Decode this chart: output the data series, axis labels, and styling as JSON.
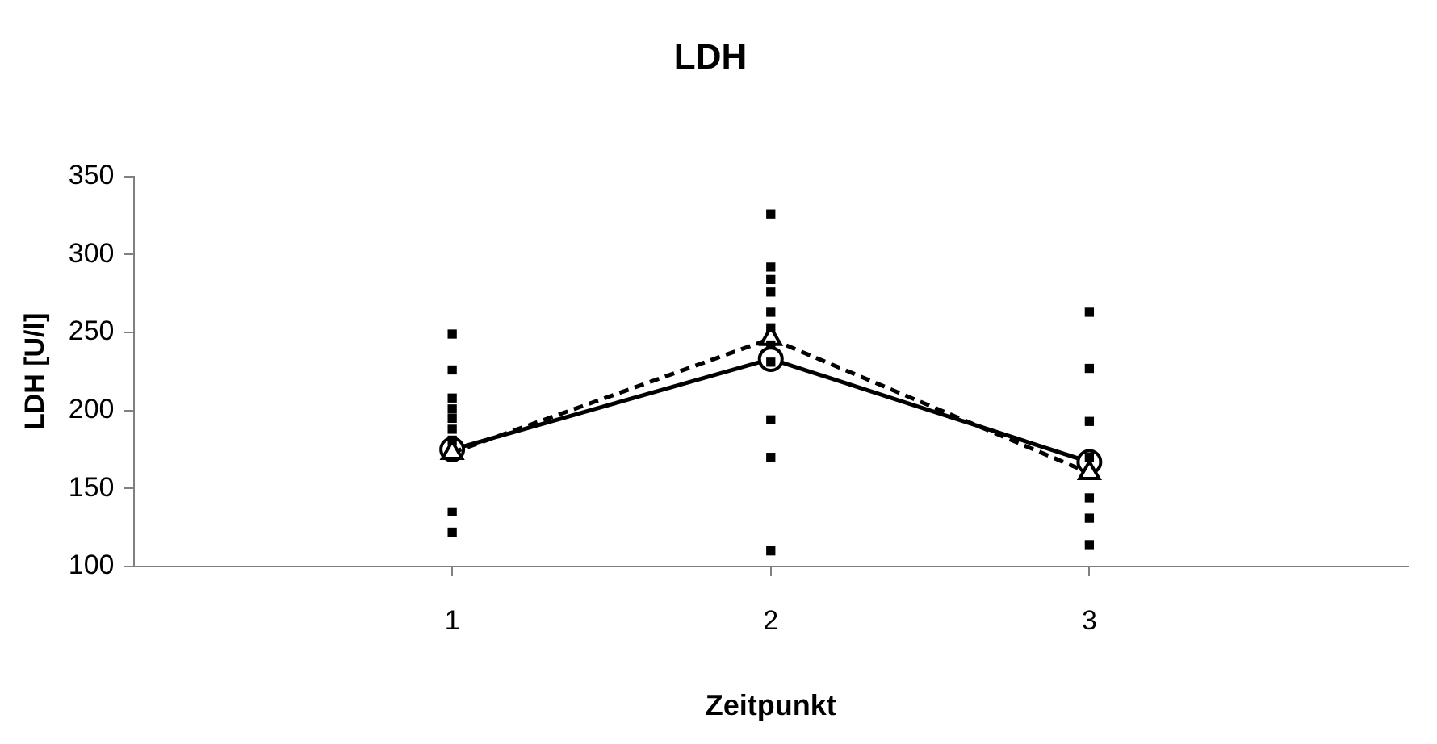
{
  "chart_data": {
    "type": "line",
    "title": "LDH",
    "xlabel": "Zeitpunkt",
    "ylabel": "LDH [U/l]",
    "xlim": [
      0,
      4
    ],
    "xticks": [
      1,
      2,
      3
    ],
    "ylim": [
      100,
      350
    ],
    "yticks": [
      100,
      150,
      200,
      250,
      300,
      350
    ],
    "grid": false,
    "legend": false,
    "series": [
      {
        "type": "scatter",
        "color": "#000000",
        "marker": "square",
        "x": [
          1,
          1,
          1,
          1,
          1,
          1,
          1,
          1,
          1,
          2,
          2,
          2,
          2,
          2,
          2,
          2,
          2,
          2,
          2,
          2,
          3,
          3,
          3,
          3,
          3,
          3,
          3
        ],
        "values": [
          249,
          226,
          208,
          201,
          195,
          188,
          181,
          135,
          122,
          326,
          292,
          284,
          276,
          263,
          253,
          242,
          231,
          194,
          170,
          110,
          263,
          227,
          193,
          170,
          144,
          131,
          114
        ]
      },
      {
        "type": "line",
        "color": "#000000",
        "marker": "circle",
        "line_style": "solid",
        "x": [
          1,
          2,
          3
        ],
        "values": [
          175,
          233,
          167
        ]
      },
      {
        "type": "line",
        "color": "#000000",
        "marker": "triangle",
        "line_style": "dashed",
        "x": [
          1,
          2,
          3
        ],
        "values": [
          173,
          246,
          160
        ]
      }
    ]
  }
}
